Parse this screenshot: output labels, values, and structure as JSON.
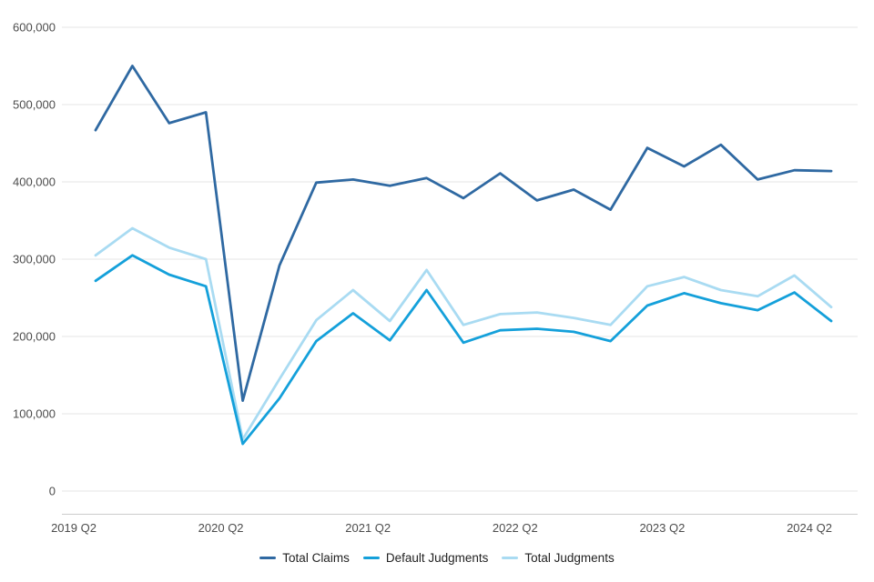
{
  "chart_data": {
    "type": "line",
    "title": "",
    "xlabel": "",
    "ylabel": "",
    "grid": "horizontal",
    "legend_position": "bottom",
    "ylim": [
      0,
      600000
    ],
    "y_tick_step": 100000,
    "y_tick_labels": [
      "0",
      "100,000",
      "200,000",
      "300,000",
      "400,000",
      "500,000",
      "600,000"
    ],
    "x_tick_labels": [
      "2019 Q2",
      "2020 Q2",
      "2021 Q2",
      "2022 Q2",
      "2023 Q2",
      "2024 Q2"
    ],
    "categories": [
      "2019 Q2",
      "2019 Q3",
      "2019 Q4",
      "2020 Q1",
      "2020 Q2",
      "2020 Q3",
      "2020 Q4",
      "2021 Q1",
      "2021 Q2",
      "2021 Q3",
      "2021 Q4",
      "2022 Q1",
      "2022 Q2",
      "2022 Q3",
      "2022 Q4",
      "2023 Q1",
      "2023 Q2",
      "2023 Q3",
      "2023 Q4",
      "2024 Q1",
      "2024 Q2"
    ],
    "series": [
      {
        "name": "Total Claims",
        "color": "#2f69a2",
        "values": [
          467000,
          550000,
          476000,
          490000,
          117000,
          292000,
          399000,
          403000,
          395000,
          405000,
          379000,
          411000,
          376000,
          390000,
          364000,
          444000,
          420000,
          448000,
          403000,
          415000,
          414000
        ]
      },
      {
        "name": "Default Judgments",
        "color": "#14a0da",
        "values": [
          272000,
          305000,
          280000,
          265000,
          61000,
          120000,
          194000,
          230000,
          195000,
          260000,
          192000,
          208000,
          210000,
          206000,
          194000,
          240000,
          256000,
          243000,
          234000,
          257000,
          220000
        ]
      },
      {
        "name": "Total Judgments",
        "color": "#a9dbf2",
        "values": [
          305000,
          340000,
          315000,
          300000,
          67000,
          145000,
          221000,
          260000,
          220000,
          286000,
          215000,
          229000,
          231000,
          224000,
          215000,
          265000,
          277000,
          260000,
          252000,
          279000,
          238000
        ]
      }
    ]
  }
}
